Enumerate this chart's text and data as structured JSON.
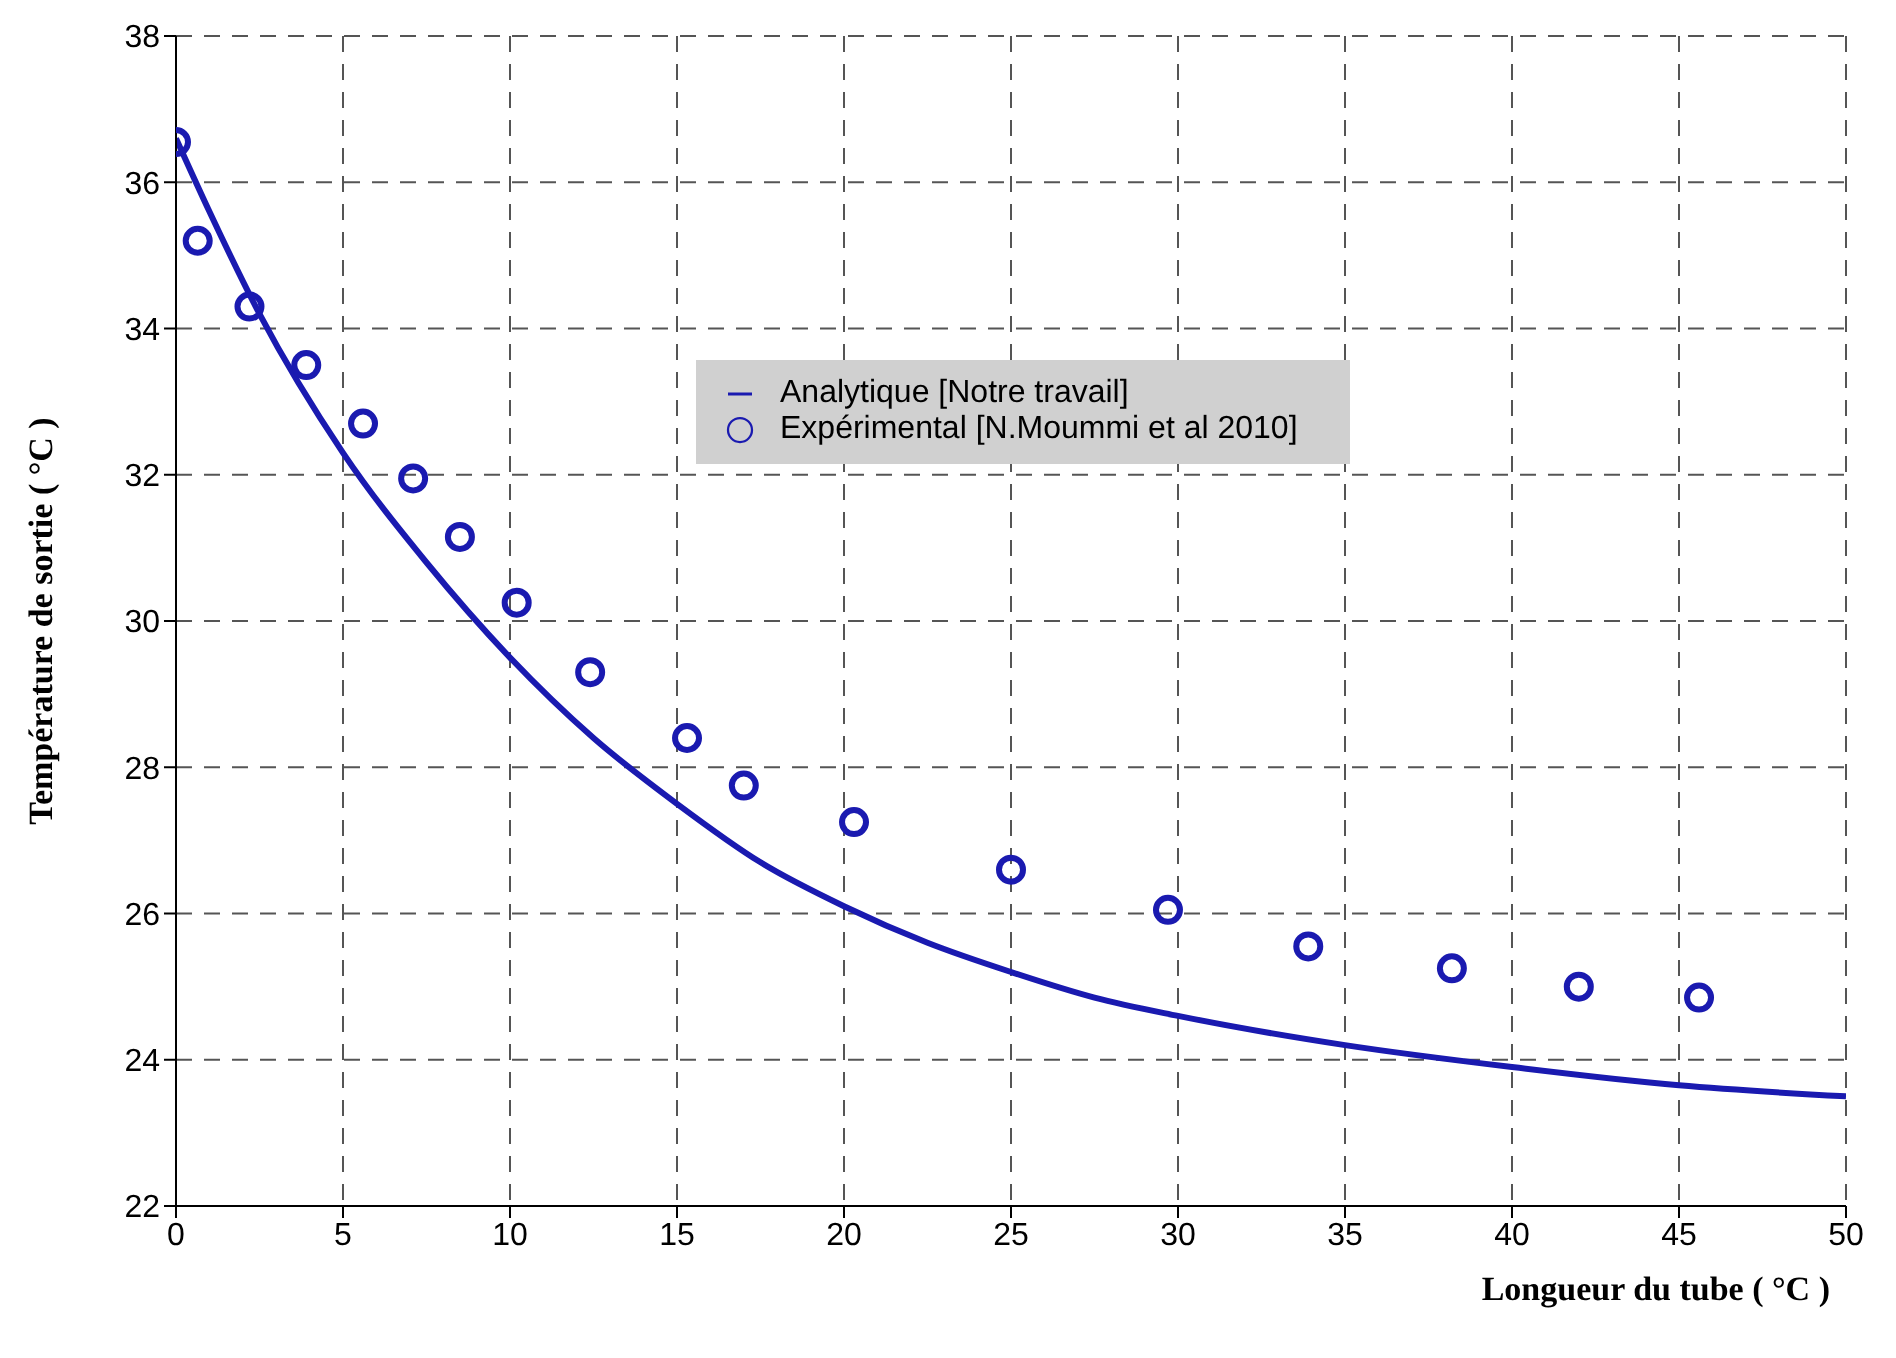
{
  "chart_data": {
    "type": "line",
    "xlabel": "Longueur du tube ( °C )",
    "ylabel": "Température de sortie ( °C )",
    "xlim": [
      0,
      50
    ],
    "xticks": [
      0,
      5,
      10,
      15,
      20,
      25,
      30,
      35,
      40,
      45,
      50
    ],
    "ylim": [
      22,
      38
    ],
    "yticks": [
      22,
      24,
      26,
      28,
      30,
      32,
      34,
      36,
      38
    ],
    "grid": true,
    "legend": "top",
    "series": [
      {
        "name": "Analytique [Notre travail]",
        "type": "line",
        "color": "#1a1ab0",
        "marker": "none",
        "line_style": "solid",
        "x": [
          0,
          1,
          2.5,
          5,
          7.5,
          10,
          12.5,
          15,
          17.5,
          20,
          22.5,
          25,
          27.5,
          30,
          35,
          40,
          45,
          50
        ],
        "values": [
          36.6,
          35.6,
          34.2,
          32.3,
          30.8,
          29.5,
          28.4,
          27.5,
          26.7,
          26.1,
          25.6,
          25.2,
          24.85,
          24.6,
          24.2,
          23.9,
          23.65,
          23.5
        ]
      },
      {
        "name": "Expérimental  [N.Moummi et al 2010]",
        "type": "scatter",
        "color": "#1a1ab0",
        "marker": "circle",
        "x": [
          0,
          0.65,
          2.2,
          3.9,
          5.6,
          7.1,
          8.5,
          10.2,
          12.4,
          15.3,
          17,
          20.3,
          25,
          29.7,
          33.9,
          38.2,
          42,
          45.6
        ],
        "values": [
          36.55,
          35.2,
          34.3,
          33.5,
          32.7,
          31.95,
          31.15,
          30.25,
          29.3,
          28.4,
          27.75,
          27.25,
          26.6,
          26.05,
          25.55,
          25.25,
          25.0,
          24.85
        ]
      }
    ]
  }
}
